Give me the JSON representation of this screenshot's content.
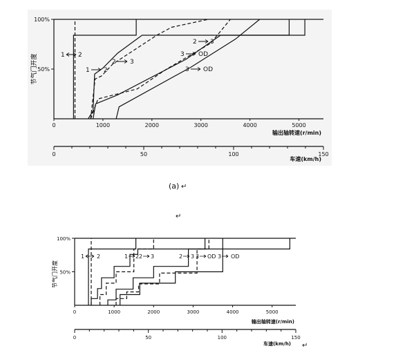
{
  "captions": {
    "fig_a": "(a)",
    "para_mark_1": "↵",
    "para_mark_2": "↵",
    "para_mark_3": "↵"
  },
  "chart_data": [
    {
      "type": "line",
      "id": "a",
      "ylabel": "节气门开度",
      "xlabel": "输出轴转速(r/min)",
      "xlim": [
        0,
        5500
      ],
      "ylim": [
        0,
        100
      ],
      "xticks": [
        0,
        1000,
        2000,
        3000,
        4000,
        5000
      ],
      "yticks": [
        {
          "v": 50,
          "t": "50%"
        },
        {
          "v": 100,
          "t": "100%"
        }
      ],
      "x2label": "车速(km/h)",
      "x2lim": [
        0,
        150
      ],
      "x2ticks": [
        0,
        50,
        100,
        150
      ],
      "series": [
        {
          "name": "1→2",
          "upshift": true,
          "points": [
            [
              400,
              0
            ],
            [
              400,
              84
            ],
            [
              1680,
              84
            ],
            [
              1680,
              100
            ]
          ]
        },
        {
          "name": "2→1",
          "upshift": false,
          "points": [
            [
              430,
              0
            ],
            [
              430,
              65
            ],
            [
              430,
              100
            ]
          ]
        },
        {
          "name": "2→3",
          "upshift": true,
          "points": [
            [
              700,
              0
            ],
            [
              800,
              8
            ],
            [
              830,
              45
            ],
            [
              1000,
              51
            ],
            [
              1300,
              66
            ],
            [
              1800,
              84
            ],
            [
              4800,
              84
            ],
            [
              4800,
              100
            ]
          ]
        },
        {
          "name": "3→2",
          "upshift": false,
          "points": [
            [
              750,
              0
            ],
            [
              840,
              40
            ],
            [
              970,
              43
            ],
            [
              1200,
              55
            ],
            [
              2100,
              84
            ],
            [
              2400,
              92
            ],
            [
              3150,
              100
            ]
          ]
        },
        {
          "name": "3→OD",
          "upshift": true,
          "points": [
            [
              800,
              0
            ],
            [
              850,
              15
            ],
            [
              1300,
              24
            ],
            [
              2700,
              60
            ],
            [
              3400,
              84
            ],
            [
              5120,
              84
            ],
            [
              5120,
              100
            ]
          ]
        },
        {
          "name": "OD→3",
          "upshift": false,
          "points": [
            [
              750,
              0
            ],
            [
              900,
              20
            ],
            [
              1700,
              30
            ],
            [
              2300,
              50
            ],
            [
              3200,
              76
            ],
            [
              3600,
              100
            ]
          ]
        },
        {
          "name": "3→OD ",
          "upshift": true,
          "points": [
            [
              1270,
              0
            ],
            [
              1330,
              12
            ],
            [
              2800,
              52
            ],
            [
              3700,
              80
            ],
            [
              4200,
              100
            ]
          ]
        }
      ],
      "annotations": [
        "1",
        "2",
        "1",
        "2",
        "2",
        "3",
        "2",
        "3",
        "3",
        "OD",
        "3",
        "OD"
      ]
    },
    {
      "type": "line",
      "id": "b",
      "ylabel": "节气门开度",
      "xlabel": "输出轴转速(r/min)",
      "xlim": [
        0,
        5600
      ],
      "ylim": [
        0,
        100
      ],
      "xticks": [
        0,
        1000,
        2000,
        3000,
        4000,
        5000
      ],
      "yticks": [
        {
          "v": 50,
          "t": "50%"
        },
        {
          "v": 100,
          "t": "100%"
        }
      ],
      "x2label": "车速(km/h)",
      "x2lim": [
        0,
        150
      ],
      "x2ticks": [
        0,
        50,
        100,
        150
      ],
      "series": [
        {
          "name": "1→2",
          "upshift": true,
          "points": [
            [
              350,
              0
            ],
            [
              350,
              84
            ],
            [
              1550,
              84
            ],
            [
              1550,
              100
            ]
          ]
        },
        {
          "name": "2→1",
          "upshift": false,
          "points": [
            [
              420,
              0
            ],
            [
              420,
              84
            ],
            [
              420,
              100
            ]
          ]
        },
        {
          "name": "2→3",
          "upshift": true,
          "points": [
            [
              420,
              0
            ],
            [
              420,
              10
            ],
            [
              580,
              10
            ],
            [
              580,
              25
            ],
            [
              680,
              25
            ],
            [
              680,
              41
            ],
            [
              1000,
              41
            ],
            [
              1000,
              58
            ],
            [
              1400,
              58
            ],
            [
              1400,
              76
            ],
            [
              1600,
              76
            ],
            [
              1600,
              84
            ],
            [
              3300,
              84
            ],
            [
              3300,
              100
            ]
          ]
        },
        {
          "name": "3→2",
          "upshift": false,
          "points": [
            [
              640,
              0
            ],
            [
              640,
              16
            ],
            [
              800,
              16
            ],
            [
              800,
              33
            ],
            [
              1050,
              33
            ],
            [
              1050,
              50
            ],
            [
              1500,
              50
            ],
            [
              1500,
              84
            ],
            [
              2000,
              84
            ],
            [
              2000,
              100
            ]
          ]
        },
        {
          "name": "3→OD",
          "upshift": true,
          "points": [
            [
              840,
              0
            ],
            [
              840,
              8
            ],
            [
              1050,
              8
            ],
            [
              1050,
              24
            ],
            [
              1480,
              24
            ],
            [
              1480,
              41
            ],
            [
              2000,
              41
            ],
            [
              2000,
              58
            ],
            [
              2880,
              58
            ],
            [
              2880,
              84
            ],
            [
              5450,
              84
            ],
            [
              5450,
              100
            ]
          ]
        },
        {
          "name": "OD→3",
          "upshift": false,
          "points": [
            [
              1050,
              0
            ],
            [
              1050,
              10
            ],
            [
              1320,
              10
            ],
            [
              1320,
              20
            ],
            [
              1620,
              20
            ],
            [
              1620,
              32
            ],
            [
              2150,
              32
            ],
            [
              2150,
              48
            ],
            [
              3100,
              48
            ],
            [
              3100,
              84
            ],
            [
              3400,
              84
            ],
            [
              3400,
              100
            ]
          ]
        },
        {
          "name": "3→OD ",
          "upshift": true,
          "points": [
            [
              1150,
              0
            ],
            [
              1150,
              16
            ],
            [
              1650,
              16
            ],
            [
              1650,
              33
            ],
            [
              2550,
              33
            ],
            [
              2550,
              50
            ],
            [
              3750,
              50
            ],
            [
              3750,
              84
            ],
            [
              3750,
              100
            ]
          ]
        }
      ],
      "annotations": [
        "1",
        "2",
        "1",
        "2",
        "2",
        "3",
        "2",
        "3",
        "3",
        "OD",
        "3",
        "OD"
      ]
    }
  ]
}
